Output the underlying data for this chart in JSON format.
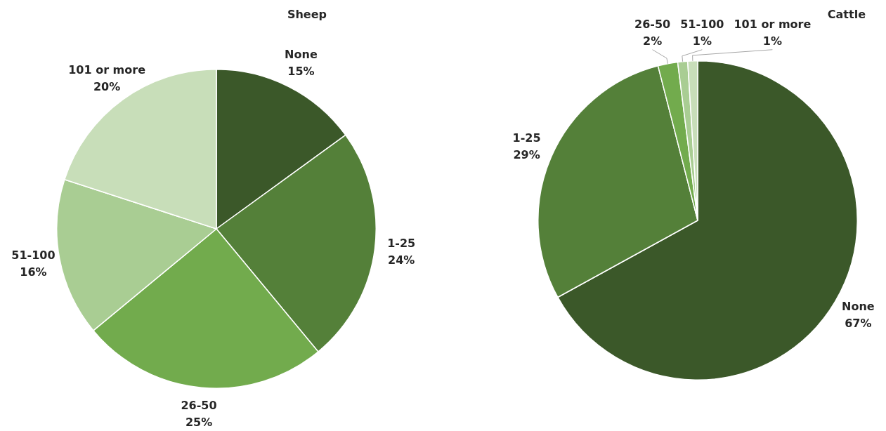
{
  "chart_data": [
    {
      "type": "pie",
      "title": "Sheep",
      "categories": [
        "None",
        "1-25",
        "26-50",
        "51-100",
        "101 or more"
      ],
      "values": [
        15,
        24,
        25,
        16,
        20
      ],
      "value_labels": [
        "15%",
        "24%",
        "25%",
        "16%",
        "20%"
      ],
      "colors": [
        "#3b5829",
        "#548039",
        "#72ab4d",
        "#a9cd93",
        "#c8deb9"
      ],
      "legend": false
    },
    {
      "type": "pie",
      "title": "Cattle",
      "categories": [
        "None",
        "1-25",
        "26-50",
        "51-100",
        "101 or more"
      ],
      "values": [
        67,
        29,
        2,
        1,
        1
      ],
      "value_labels": [
        "67%",
        "29%",
        "2%",
        "1%",
        "1%"
      ],
      "colors": [
        "#3b5829",
        "#548039",
        "#72ab4d",
        "#a9cd93",
        "#c8deb9"
      ],
      "legend": false
    }
  ]
}
